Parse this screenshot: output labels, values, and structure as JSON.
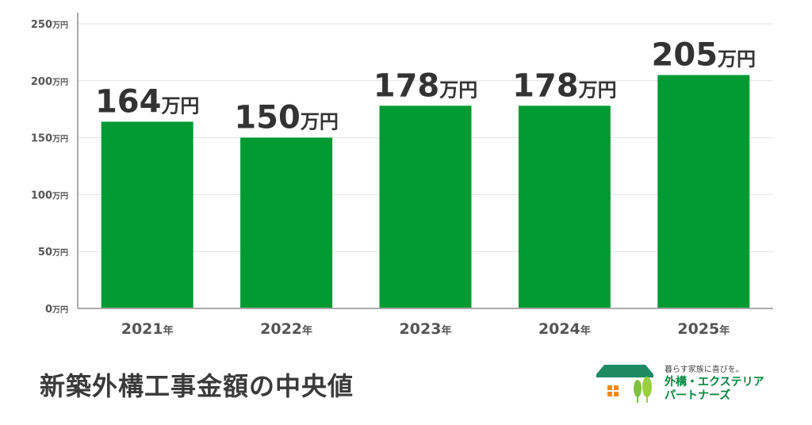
{
  "colors": {
    "bar": "#009a32",
    "axis": "#aaaaaa",
    "grid": "#e2e2e2"
  },
  "chart_data": {
    "type": "bar",
    "categories": [
      "2021",
      "2022",
      "2023",
      "2024",
      "2025"
    ],
    "category_suffix": "年",
    "values": [
      164,
      150,
      178,
      178,
      205
    ],
    "value_unit": "万円",
    "ylim": [
      0,
      250
    ],
    "yticks": [
      0,
      50,
      100,
      150,
      200,
      250
    ],
    "ytick_unit": "万円",
    "grid": true,
    "legend": "none"
  },
  "footer": {
    "title": "新築外構工事金額の中央値"
  },
  "logo": {
    "tagline": "暮らす家族に喜びを。",
    "name_line1": "外構・エクステリア",
    "name_line2": "パートナーズ",
    "icon": "house-and-trees-icon"
  }
}
